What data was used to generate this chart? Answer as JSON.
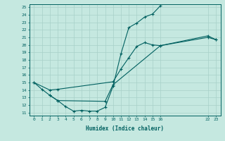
{
  "xlabel": "Humidex (Indice chaleur)",
  "bg_color": "#c5e8e0",
  "grid_color": "#a8d0c8",
  "line_color": "#006060",
  "ylim": [
    11,
    25
  ],
  "yticks": [
    11,
    12,
    13,
    14,
    15,
    16,
    17,
    18,
    19,
    20,
    21,
    22,
    23,
    24,
    25
  ],
  "xtick_positions": [
    0,
    1,
    2,
    3,
    4,
    5,
    6,
    7,
    8,
    9,
    10,
    11,
    12,
    13,
    14,
    15,
    16,
    22,
    23
  ],
  "xtick_labels": [
    "0",
    "1",
    "2",
    "3",
    "4",
    "5",
    "6",
    "7",
    "8",
    "9",
    "10",
    "11",
    "12",
    "13",
    "14",
    "15",
    "16",
    "22",
    "23"
  ],
  "line1_x": [
    0,
    1,
    2,
    3,
    4,
    5,
    6,
    7,
    8,
    9,
    10,
    11,
    12,
    13,
    14,
    15,
    16
  ],
  "line1_y": [
    15.0,
    14.1,
    13.3,
    12.6,
    11.8,
    11.2,
    11.3,
    11.2,
    11.2,
    11.7,
    14.5,
    18.8,
    22.3,
    22.9,
    23.7,
    24.1,
    25.2
  ],
  "line2_x": [
    0,
    2,
    3,
    10,
    11,
    12,
    13,
    14,
    15,
    16,
    22,
    23
  ],
  "line2_y": [
    15.0,
    14.0,
    14.1,
    15.1,
    16.8,
    18.3,
    19.8,
    20.3,
    20.0,
    19.9,
    21.2,
    20.7
  ],
  "line3_x": [
    2,
    3,
    9,
    10,
    16,
    22,
    23
  ],
  "line3_y": [
    13.3,
    12.6,
    12.5,
    14.7,
    19.9,
    21.0,
    20.7
  ]
}
